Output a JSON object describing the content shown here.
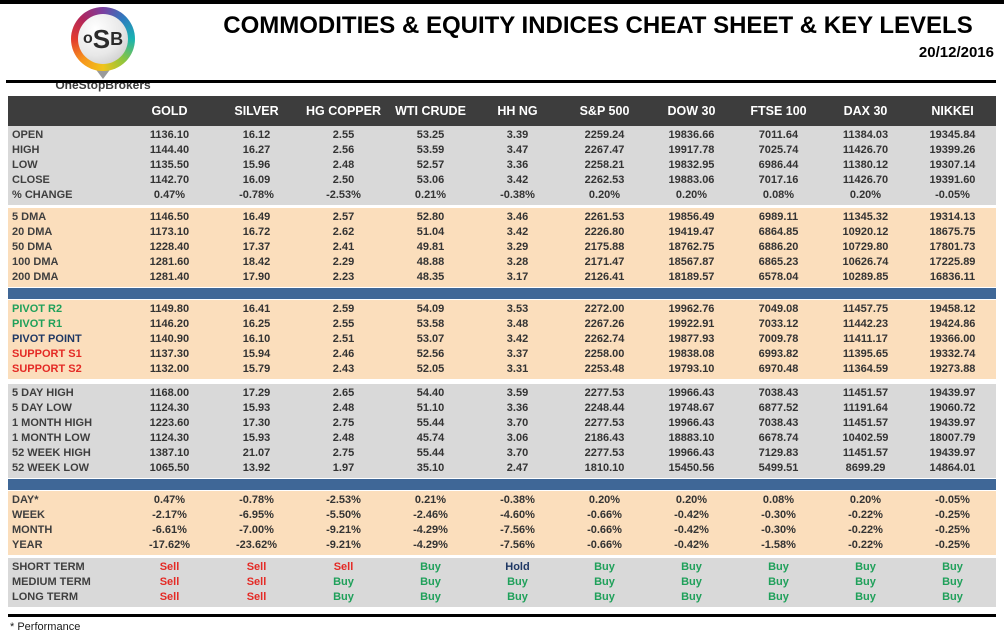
{
  "header": {
    "title": "COMMODITIES & EQUITY INDICES CHEAT SHEET & KEY LEVELS",
    "date": "20/12/2016",
    "logo": {
      "monogram_o": "o",
      "monogram_s": "S",
      "monogram_b": "B",
      "brand": "OneStopBrokers"
    }
  },
  "colors": {
    "header_bg": "#3d3d3d",
    "gray_band": "#d9d9d9",
    "peach_band": "#fbdebc",
    "blue_separator": "#3f6797",
    "buy_green": "#1fa05a",
    "sell_red": "#e42a25",
    "hold_navy": "#1f3864"
  },
  "table": {
    "columns": [
      "GOLD",
      "SILVER",
      "HG COPPER",
      "WTI CRUDE",
      "HH NG",
      "S&P 500",
      "DOW 30",
      "FTSE 100",
      "DAX 30",
      "NIKKEI"
    ],
    "sections": [
      {
        "name": "quotes",
        "style": "gray",
        "separator_before": false,
        "rows": [
          {
            "label": "OPEN",
            "values": [
              "1136.10",
              "16.12",
              "2.55",
              "53.25",
              "3.39",
              "2259.24",
              "19836.66",
              "7011.64",
              "11384.03",
              "19345.84"
            ]
          },
          {
            "label": "HIGH",
            "values": [
              "1144.40",
              "16.27",
              "2.56",
              "53.59",
              "3.47",
              "2267.47",
              "19917.78",
              "7025.74",
              "11426.70",
              "19399.26"
            ]
          },
          {
            "label": "LOW",
            "values": [
              "1135.50",
              "15.96",
              "2.48",
              "52.57",
              "3.36",
              "2258.21",
              "19832.95",
              "6986.44",
              "11380.12",
              "19307.14"
            ]
          },
          {
            "label": "CLOSE",
            "values": [
              "1142.70",
              "16.09",
              "2.50",
              "53.06",
              "3.42",
              "2262.53",
              "19883.06",
              "7017.16",
              "11426.70",
              "19391.60"
            ]
          },
          {
            "label": "% CHANGE",
            "values": [
              "0.47%",
              "-0.78%",
              "-2.53%",
              "0.21%",
              "-0.38%",
              "0.20%",
              "0.20%",
              "0.08%",
              "0.20%",
              "-0.05%"
            ]
          }
        ]
      },
      {
        "name": "moving_averages",
        "style": "peach",
        "separator_before": false,
        "rows": [
          {
            "label": "5 DMA",
            "values": [
              "1146.50",
              "16.49",
              "2.57",
              "52.80",
              "3.46",
              "2261.53",
              "19856.49",
              "6989.11",
              "11345.32",
              "19314.13"
            ]
          },
          {
            "label": "20 DMA",
            "values": [
              "1173.10",
              "16.72",
              "2.62",
              "51.04",
              "3.42",
              "2226.80",
              "19419.47",
              "6864.85",
              "10920.12",
              "18675.75"
            ]
          },
          {
            "label": "50 DMA",
            "values": [
              "1228.40",
              "17.37",
              "2.41",
              "49.81",
              "3.29",
              "2175.88",
              "18762.75",
              "6886.20",
              "10729.80",
              "17801.73"
            ]
          },
          {
            "label": "100 DMA",
            "values": [
              "1281.60",
              "18.42",
              "2.29",
              "48.88",
              "3.28",
              "2171.47",
              "18567.87",
              "6865.23",
              "10626.74",
              "17225.89"
            ]
          },
          {
            "label": "200 DMA",
            "values": [
              "1281.40",
              "17.90",
              "2.23",
              "48.35",
              "3.17",
              "2126.41",
              "18189.57",
              "6578.04",
              "10289.85",
              "16836.11"
            ]
          }
        ]
      },
      {
        "name": "pivots",
        "style": "peach",
        "separator_before": true,
        "rows": [
          {
            "label": "PIVOT R2",
            "label_class": "green",
            "values": [
              "1149.80",
              "16.41",
              "2.59",
              "54.09",
              "3.53",
              "2272.00",
              "19962.76",
              "7049.08",
              "11457.75",
              "19458.12"
            ]
          },
          {
            "label": "PIVOT R1",
            "label_class": "green",
            "values": [
              "1146.20",
              "16.25",
              "2.55",
              "53.58",
              "3.48",
              "2267.26",
              "19922.91",
              "7033.12",
              "11442.23",
              "19424.86"
            ]
          },
          {
            "label": "PIVOT POINT",
            "label_class": "navy",
            "values": [
              "1140.90",
              "16.10",
              "2.51",
              "53.07",
              "3.42",
              "2262.74",
              "19877.93",
              "7009.78",
              "11411.17",
              "19366.00"
            ]
          },
          {
            "label": "SUPPORT S1",
            "label_class": "red",
            "values": [
              "1137.30",
              "15.94",
              "2.46",
              "52.56",
              "3.37",
              "2258.00",
              "19838.08",
              "6993.82",
              "11395.65",
              "19332.74"
            ]
          },
          {
            "label": "SUPPORT S2",
            "label_class": "red",
            "values": [
              "1132.00",
              "15.79",
              "2.43",
              "52.05",
              "3.31",
              "2253.48",
              "19793.10",
              "6970.48",
              "11364.59",
              "19273.88"
            ]
          }
        ]
      },
      {
        "name": "ranges",
        "style": "gray",
        "separator_before": false,
        "rows": [
          {
            "label": "5 DAY HIGH",
            "values": [
              "1168.00",
              "17.29",
              "2.65",
              "54.40",
              "3.59",
              "2277.53",
              "19966.43",
              "7038.43",
              "11451.57",
              "19439.97"
            ]
          },
          {
            "label": "5 DAY LOW",
            "values": [
              "1124.30",
              "15.93",
              "2.48",
              "51.10",
              "3.36",
              "2248.44",
              "19748.67",
              "6877.52",
              "11191.64",
              "19060.72"
            ]
          },
          {
            "label": "1 MONTH HIGH",
            "values": [
              "1223.60",
              "17.30",
              "2.75",
              "55.44",
              "3.70",
              "2277.53",
              "19966.43",
              "7038.43",
              "11451.57",
              "19439.97"
            ]
          },
          {
            "label": "1 MONTH LOW",
            "values": [
              "1124.30",
              "15.93",
              "2.48",
              "45.74",
              "3.06",
              "2186.43",
              "18883.10",
              "6678.74",
              "10402.59",
              "18007.79"
            ]
          },
          {
            "label": "52 WEEK HIGH",
            "values": [
              "1387.10",
              "21.07",
              "2.75",
              "55.44",
              "3.70",
              "2277.53",
              "19966.43",
              "7129.83",
              "11451.57",
              "19439.97"
            ]
          },
          {
            "label": "52 WEEK LOW",
            "values": [
              "1065.50",
              "13.92",
              "1.97",
              "35.10",
              "2.47",
              "1810.10",
              "15450.56",
              "5499.51",
              "8699.29",
              "14864.01"
            ]
          }
        ]
      },
      {
        "name": "performance",
        "style": "peach",
        "separator_before": true,
        "rows": [
          {
            "label": "DAY*",
            "values": [
              "0.47%",
              "-0.78%",
              "-2.53%",
              "0.21%",
              "-0.38%",
              "0.20%",
              "0.20%",
              "0.08%",
              "0.20%",
              "-0.05%"
            ]
          },
          {
            "label": "WEEK",
            "values": [
              "-2.17%",
              "-6.95%",
              "-5.50%",
              "-2.46%",
              "-4.60%",
              "-0.66%",
              "-0.42%",
              "-0.30%",
              "-0.22%",
              "-0.25%"
            ]
          },
          {
            "label": "MONTH",
            "values": [
              "-6.61%",
              "-7.00%",
              "-9.21%",
              "-4.29%",
              "-7.56%",
              "-0.66%",
              "-0.42%",
              "-0.30%",
              "-0.22%",
              "-0.25%"
            ]
          },
          {
            "label": "YEAR",
            "values": [
              "-17.62%",
              "-23.62%",
              "-9.21%",
              "-4.29%",
              "-7.56%",
              "-0.66%",
              "-0.42%",
              "-1.58%",
              "-0.22%",
              "-0.25%"
            ]
          }
        ]
      },
      {
        "name": "signals",
        "style": "gray",
        "separator_before": false,
        "rows": [
          {
            "label": "SHORT TERM",
            "values": [
              "Sell",
              "Sell",
              "Sell",
              "Buy",
              "Hold",
              "Buy",
              "Buy",
              "Buy",
              "Buy",
              "Buy"
            ]
          },
          {
            "label": "MEDIUM TERM",
            "values": [
              "Sell",
              "Sell",
              "Buy",
              "Buy",
              "Buy",
              "Buy",
              "Buy",
              "Buy",
              "Buy",
              "Buy"
            ]
          },
          {
            "label": "LONG TERM",
            "values": [
              "Sell",
              "Sell",
              "Buy",
              "Buy",
              "Buy",
              "Buy",
              "Buy",
              "Buy",
              "Buy",
              "Buy"
            ]
          }
        ]
      }
    ]
  },
  "footer": {
    "note": "* Performance"
  }
}
